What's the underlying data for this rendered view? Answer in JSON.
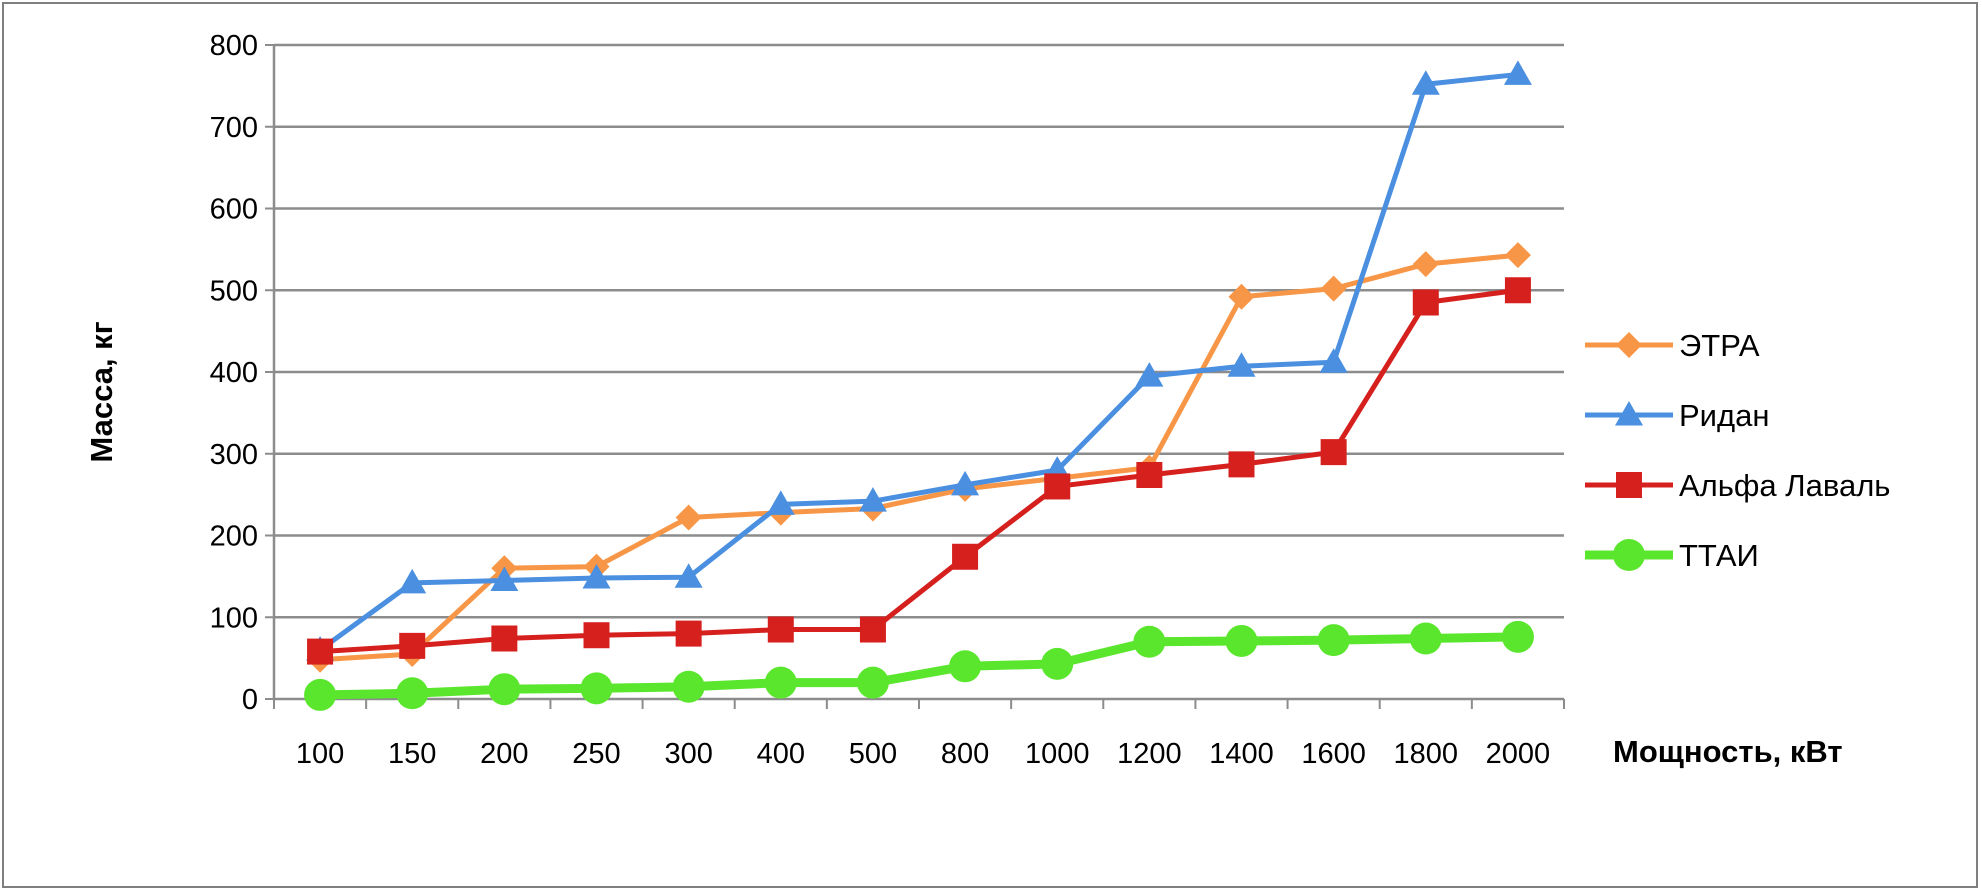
{
  "chart_data": {
    "type": "line",
    "categories": [
      "100",
      "150",
      "200",
      "250",
      "300",
      "400",
      "500",
      "800",
      "1000",
      "1200",
      "1400",
      "1600",
      "1800",
      "2000"
    ],
    "series": [
      {
        "name": "ЭТРА",
        "color": "#f79646",
        "marker": "diamond",
        "values": [
          48,
          55,
          160,
          162,
          222,
          228,
          233,
          257,
          270,
          283,
          492,
          502,
          532,
          543
        ]
      },
      {
        "name": "Ридан",
        "color": "#4a8fe0",
        "marker": "triangle",
        "values": [
          60,
          142,
          145,
          148,
          149,
          238,
          242,
          262,
          280,
          395,
          407,
          412,
          752,
          764
        ]
      },
      {
        "name": "Альфа Лаваль",
        "color": "#d5201d",
        "marker": "square",
        "values": [
          58,
          65,
          74,
          78,
          80,
          85,
          85,
          174,
          260,
          274,
          287,
          302,
          485,
          500
        ]
      },
      {
        "name": "ТТАИ",
        "color": "#5be62e",
        "marker": "circle",
        "values": [
          5,
          7,
          12,
          13,
          15,
          20,
          20,
          40,
          43,
          70,
          71,
          72,
          74,
          76
        ]
      }
    ],
    "xlabel": "Мощность, кВт",
    "ylabel": "Масса, кг",
    "ylim": [
      0,
      800
    ],
    "yticks": [
      "0",
      "100",
      "200",
      "300",
      "400",
      "500",
      "600",
      "700",
      "800"
    ],
    "grid": true,
    "legend_position": "right"
  }
}
